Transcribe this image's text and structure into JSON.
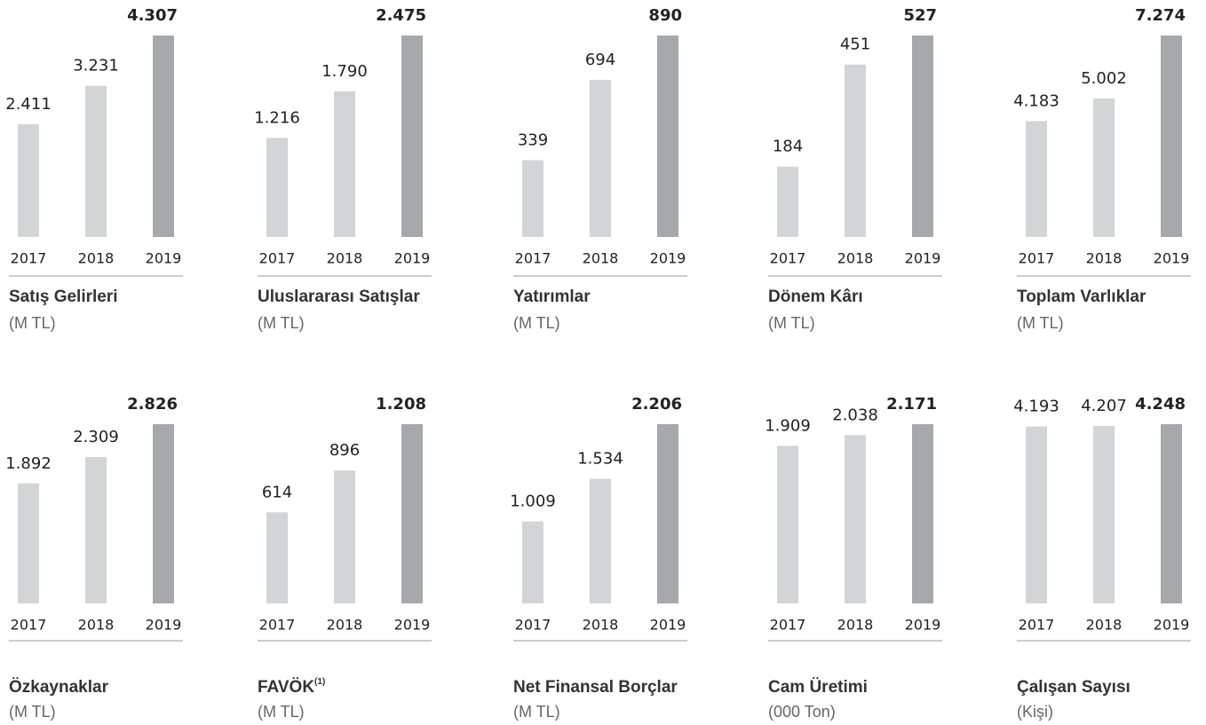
{
  "chart_data": [
    {
      "type": "bar",
      "title": "Satış Gelirleri",
      "subtitle": "(M TL)",
      "categories": [
        "2017",
        "2018",
        "2019"
      ],
      "values": [
        2411,
        3231,
        4307
      ],
      "value_labels": [
        "2.411",
        "3.231",
        "4.307"
      ],
      "colors": [
        "#d3d4d6",
        "#d3d4d6",
        "#a7a8ab"
      ],
      "ylim": [
        0,
        4307
      ]
    },
    {
      "type": "bar",
      "title": "Uluslararası Satışlar",
      "subtitle": "(M TL)",
      "categories": [
        "2017",
        "2018",
        "2019"
      ],
      "values": [
        1216,
        1790,
        2475
      ],
      "value_labels": [
        "1.216",
        "1.790",
        "2.475"
      ],
      "colors": [
        "#d3d4d6",
        "#d3d4d6",
        "#a7a8ab"
      ],
      "ylim": [
        0,
        2475
      ]
    },
    {
      "type": "bar",
      "title": "Yatırımlar",
      "subtitle": "(M TL)",
      "categories": [
        "2017",
        "2018",
        "2019"
      ],
      "values": [
        339,
        694,
        890
      ],
      "value_labels": [
        "339",
        "694",
        "890"
      ],
      "colors": [
        "#d3d4d6",
        "#d3d4d6",
        "#a7a8ab"
      ],
      "ylim": [
        0,
        890
      ]
    },
    {
      "type": "bar",
      "title": "Dönem Kârı",
      "subtitle": "(M TL)",
      "categories": [
        "2017",
        "2018",
        "2019"
      ],
      "values": [
        184,
        451,
        527
      ],
      "value_labels": [
        "184",
        "451",
        "527"
      ],
      "colors": [
        "#d3d4d6",
        "#d3d4d6",
        "#a7a8ab"
      ],
      "ylim": [
        0,
        527
      ]
    },
    {
      "type": "bar",
      "title": "Toplam Varlıklar",
      "subtitle": "(M TL)",
      "categories": [
        "2017",
        "2018",
        "2019"
      ],
      "values": [
        4183,
        5002,
        7274
      ],
      "value_labels": [
        "4.183",
        "5.002",
        "7.274"
      ],
      "colors": [
        "#d3d4d6",
        "#d3d4d6",
        "#a7a8ab"
      ],
      "ylim": [
        0,
        7274
      ]
    },
    {
      "type": "bar",
      "title": "Özkaynaklar",
      "subtitle": "(M TL)",
      "categories": [
        "2017",
        "2018",
        "2019"
      ],
      "values": [
        1892,
        2309,
        2826
      ],
      "value_labels": [
        "1.892",
        "2.309",
        "2.826"
      ],
      "colors": [
        "#d3d4d6",
        "#d3d4d6",
        "#a7a8ab"
      ],
      "ylim": [
        0,
        2826
      ]
    },
    {
      "type": "bar",
      "title": "FAVÖK",
      "title_note": "(1)",
      "subtitle": "(M TL)",
      "categories": [
        "2017",
        "2018",
        "2019"
      ],
      "values": [
        614,
        896,
        1208
      ],
      "value_labels": [
        "614",
        "896",
        "1.208"
      ],
      "colors": [
        "#d3d4d6",
        "#d3d4d6",
        "#a7a8ab"
      ],
      "ylim": [
        0,
        1208
      ]
    },
    {
      "type": "bar",
      "title": "Net Finansal Borçlar",
      "subtitle": "(M TL)",
      "categories": [
        "2017",
        "2018",
        "2019"
      ],
      "values": [
        1009,
        1534,
        2206
      ],
      "value_labels": [
        "1.009",
        "1.534",
        "2.206"
      ],
      "colors": [
        "#d3d4d6",
        "#d3d4d6",
        "#a7a8ab"
      ],
      "ylim": [
        0,
        2206
      ]
    },
    {
      "type": "bar",
      "title": "Cam Üretimi",
      "subtitle": "(000 Ton)",
      "categories": [
        "2017",
        "2018",
        "2019"
      ],
      "values": [
        1909,
        2038,
        2171
      ],
      "value_labels": [
        "1.909",
        "2.038",
        "2.171"
      ],
      "colors": [
        "#d3d4d6",
        "#d3d4d6",
        "#a7a8ab"
      ],
      "ylim": [
        0,
        2171
      ]
    },
    {
      "type": "bar",
      "title": "Çalışan Sayısı",
      "subtitle": "(Kişi)",
      "categories": [
        "2017",
        "2018",
        "2019"
      ],
      "values": [
        4193,
        4207,
        4248
      ],
      "value_labels": [
        "4.193",
        "4.207",
        "4.248"
      ],
      "colors": [
        "#d3d4d6",
        "#d3d4d6",
        "#a7a8ab"
      ],
      "ylim": [
        0,
        4248
      ]
    }
  ]
}
